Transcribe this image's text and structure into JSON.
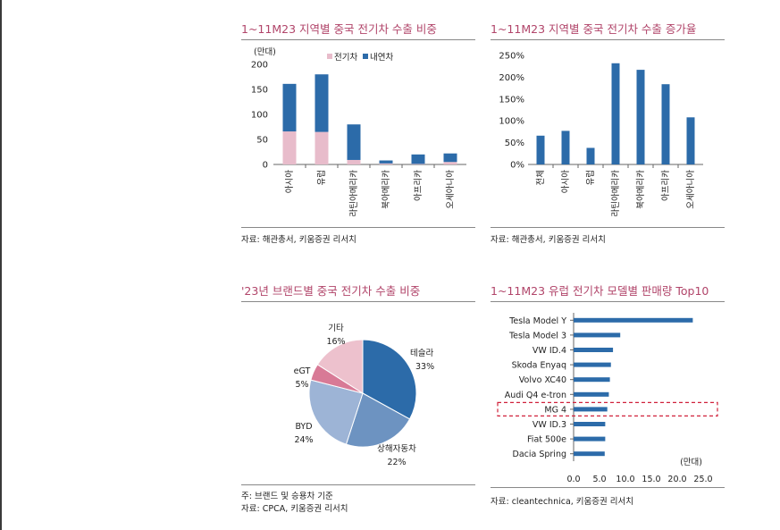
{
  "colors": {
    "title": "#b1456a",
    "ev": "#e8bccb",
    "ice": "#2c6ba9",
    "bar": "#2c6ba9",
    "dash": "#d0213a",
    "pie": [
      "#2c6ba9",
      "#6d93c1",
      "#9db4d6",
      "#d87a96",
      "#edc1cd"
    ]
  },
  "panels": {
    "p1": {
      "title": "1~11M23 지역별 중국 전기차 수출 비중",
      "source": "자료: 해관총서, 키움증권 리서치"
    },
    "p2": {
      "title": "1~11M23 지역별 중국 전기차 수출 증가율",
      "source": "자료: 해관총서, 키움증권 리서치"
    },
    "p3": {
      "title": "'23년 브랜드별 중국 전기차 수출 비중",
      "note": "주: 브랜드 및 승용차 기준",
      "source": "자료: CPCA, 키움증권 리서치"
    },
    "p4": {
      "title": "1~11M23 유럽 전기차 모델별 판매량 Top10",
      "source": "자료: cleantechnica, 키움증권 리서치"
    }
  },
  "chart_data": [
    {
      "type": "bar",
      "stacked": true,
      "ylabel": "(만대)",
      "categories": [
        "아시아",
        "유럽",
        "라틴아메리카",
        "북아메리카",
        "아프리카",
        "오세아니아"
      ],
      "series": [
        {
          "name": "전기차",
          "values": [
            66,
            65,
            9,
            2,
            1,
            5
          ]
        },
        {
          "name": "내연차",
          "values": [
            95,
            115,
            71,
            6,
            19,
            17
          ]
        }
      ],
      "ylim": [
        0,
        200
      ],
      "yticks": [
        "0",
        "50",
        "100",
        "150",
        "200"
      ],
      "legend": "top"
    },
    {
      "type": "bar",
      "categories": [
        "전체",
        "아시아",
        "유럽",
        "라틴아메리카",
        "북아메리카",
        "아프리카",
        "오세아니아"
      ],
      "values": [
        66,
        77,
        38,
        232,
        217,
        184,
        108
      ],
      "ylim": [
        0,
        250
      ],
      "yticks": [
        "0%",
        "50%",
        "100%",
        "150%",
        "200%",
        "250%"
      ]
    },
    {
      "type": "pie",
      "slices": [
        {
          "label": "테슬라",
          "value": 33,
          "pct": "33%"
        },
        {
          "label": "상해자동차",
          "value": 22,
          "pct": "22%"
        },
        {
          "label": "BYD",
          "value": 24,
          "pct": "24%"
        },
        {
          "label": "eGT",
          "value": 5,
          "pct": "5%"
        },
        {
          "label": "기타",
          "value": 16,
          "pct": "16%"
        }
      ]
    },
    {
      "type": "bar",
      "orientation": "horizontal",
      "categories": [
        "Tesla Model Y",
        "Tesla Model 3",
        "VW ID.4",
        "Skoda Enyaq",
        "Volvo XC40",
        "Audi Q4 e-tron",
        "MG 4",
        "VW ID.3",
        "Fiat 500e",
        "Dacia Spring"
      ],
      "values": [
        23.0,
        9.0,
        7.6,
        7.2,
        7.0,
        6.8,
        6.5,
        6.1,
        6.1,
        6.0
      ],
      "xlim": [
        0,
        25
      ],
      "xticks": [
        "0.0",
        "5.0",
        "10.0",
        "15.0",
        "20.0",
        "25.0"
      ],
      "unit": "(만대)",
      "highlight": "MG 4"
    }
  ]
}
